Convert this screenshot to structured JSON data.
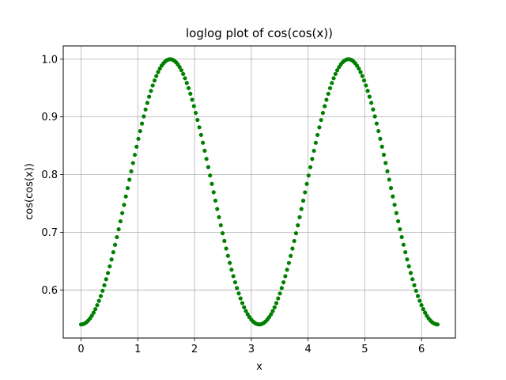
{
  "chart_data": {
    "type": "scatter",
    "title": "loglog plot of cos(cos(x))",
    "xlabel": "x",
    "ylabel": "cos(cos(x))",
    "xlim": [
      -0.314,
      6.597
    ],
    "ylim": [
      0.5167,
      1.023
    ],
    "xticks": [
      0,
      1,
      2,
      3,
      4,
      5,
      6
    ],
    "xtick_labels": [
      "0",
      "1",
      "2",
      "3",
      "4",
      "5",
      "6"
    ],
    "yticks": [
      0.6,
      0.7,
      0.8,
      0.9,
      1.0
    ],
    "ytick_labels": [
      "0.6",
      "0.7",
      "0.8",
      "0.9",
      "1.0"
    ],
    "grid": true,
    "legend": "none",
    "series": [
      {
        "function": "cos(cos(x))",
        "x_start": 0,
        "x_end": 6.283,
        "n_points": 200,
        "color": "#008000",
        "marker": "circle",
        "points_sample": [
          [
            0,
            0.5403
          ],
          [
            0.785,
            0.7602
          ],
          [
            1.571,
            1.0
          ],
          [
            2.356,
            0.7602
          ],
          [
            3.142,
            0.5403
          ],
          [
            3.927,
            0.7602
          ],
          [
            4.712,
            1.0
          ],
          [
            5.498,
            0.7602
          ],
          [
            6.283,
            0.5403
          ]
        ]
      }
    ]
  }
}
